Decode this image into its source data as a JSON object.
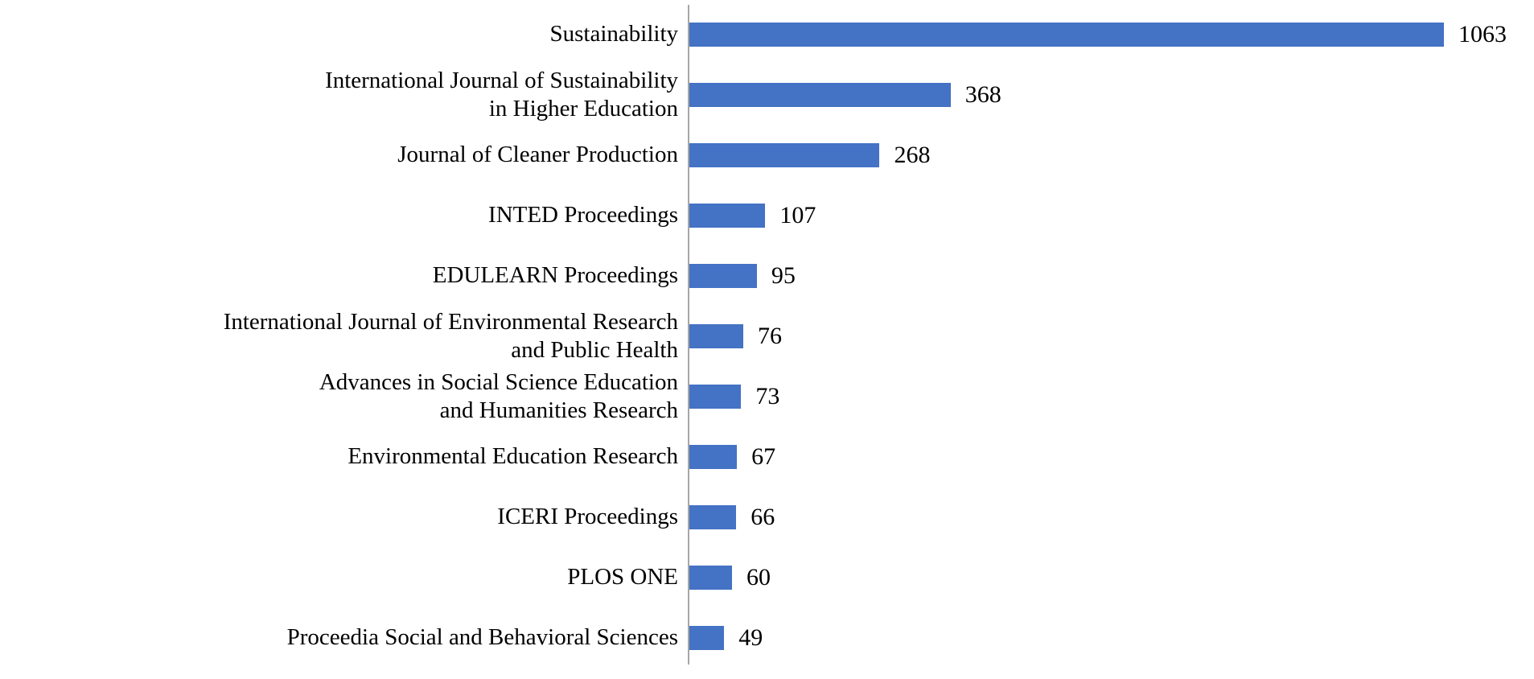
{
  "chart_data": {
    "type": "bar",
    "orientation": "horizontal",
    "title": "",
    "xlabel": "",
    "ylabel": "",
    "categories": [
      "Sustainability",
      "International Journal of Sustainability\nin Higher Education",
      "Journal of Cleaner Production",
      "INTED Proceedings",
      "EDULEARN Proceedings",
      "International Journal of Environmental Research\nand Public Health",
      "Advances in Social Science Education\nand Humanities Research",
      "Environmental Education Research",
      "ICERI Proceedings",
      "PLOS ONE",
      "Proceedia Social and Behavioral Sciences"
    ],
    "values": [
      1063,
      368,
      268,
      107,
      95,
      76,
      73,
      67,
      66,
      60,
      49
    ],
    "value_labels": [
      "1063",
      "368",
      "268",
      "107",
      "95",
      "76",
      "73",
      "67",
      "66",
      "60",
      "49"
    ],
    "xlim": [
      0,
      1190
    ],
    "grid": false,
    "legend": false,
    "bar_color": "#4472C4",
    "axis_line_color": "#a6a6a6",
    "text_color": "#000000",
    "background_color": "#ffffff"
  }
}
